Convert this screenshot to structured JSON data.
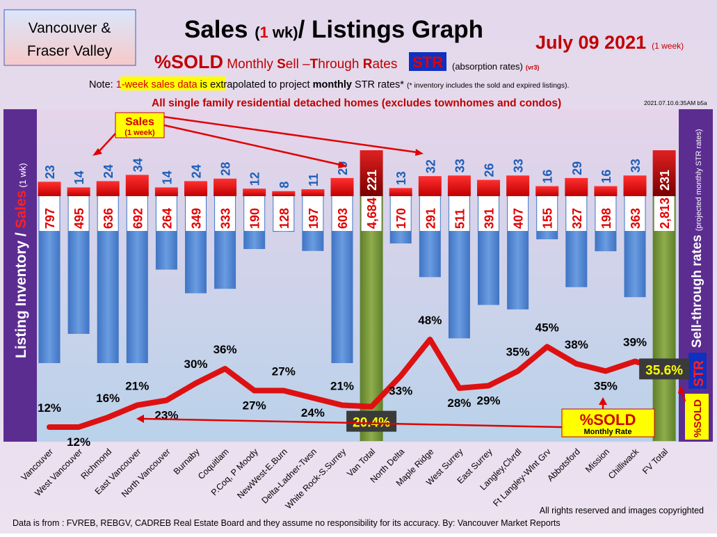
{
  "header": {
    "region_line1": "Vancouver &",
    "region_line2": "Fraser Valley",
    "title_a": "Sales ",
    "title_b": "(",
    "title_c": "1",
    "title_d": " wk)",
    "title_e": "/ Listings Graph",
    "date": "July 09  2021",
    "date_note": "(1 week)",
    "subtitle_a": "%SOLD",
    "subtitle_b": " Monthly ",
    "subtitle_c": "S",
    "subtitle_d": "ell –",
    "subtitle_e": "T",
    "subtitle_f": "hrough ",
    "subtitle_g": "R",
    "subtitle_h": "ates",
    "str_badge": "STR",
    "absorption": "(absorption rates)",
    "version": "(vr3)",
    "note_a": "Note: ",
    "note_b": "1-week sales data",
    "note_c": " is extrapolated to project ",
    "note_d": "monthly",
    "note_e": " STR rates* ",
    "note_f": "(* inventory includes the sold and expired listings).",
    "scope": "All single family residential detached homes (excludes townhomes and condos)",
    "timestamp": "2021.07.10.6:35AM b5a"
  },
  "left_axis": {
    "part1": "Listing Inventory ",
    "part2": "/ ",
    "part3": "Sales",
    "part4": " (1 wk)"
  },
  "right_axis": {
    "part1": "Sell-through rates ",
    "part2": "(projected monthly STR rates)"
  },
  "callouts": {
    "sales_line1": "Sales",
    "sales_line2": "(1 week)",
    "sold_line1": "%SOLD",
    "sold_line2": "Monthly Rate",
    "right_sold": "%SOLD",
    "right_str": "STR"
  },
  "footer": {
    "rights": "All rights reserved and  images copyrighted",
    "source": "Data is from : FVREB, REBGV, CADREB Real Estate Board and they assume no responsibility for its accuracy. By: Vancouver Market Reports"
  },
  "colors": {
    "sales": "#ee1111",
    "listings": "#4f86d4",
    "total": "#7a9a3a",
    "str_line": "#dd1111",
    "sales_label": "#1f5fb5"
  },
  "chart_data": {
    "type": "bar",
    "categories": [
      "Vancouver",
      "West Vancouver",
      "Richmond",
      "East Vancouver",
      "North Vancouver",
      "Burnaby",
      "Coquitlam",
      "P.Coq, P Moody",
      "NewWest-E.Burn",
      "Delta-Ladner-Twsn",
      "White Rock-S.Surrey",
      "Van Total",
      "North Delta",
      "Maple Ridge",
      "West Surrey",
      "East Surrey",
      "Langley,Clvrdl",
      "Ft Langley-Wlnt Grv",
      "Abbotsford",
      "Mission",
      "Chilliwack",
      "FV Total"
    ],
    "totals": [
      "Van Total",
      "FV Total"
    ],
    "series": [
      {
        "name": "Sales",
        "values": [
          23,
          14,
          24,
          34,
          14,
          24,
          28,
          12,
          8,
          11,
          29,
          221,
          13,
          32,
          33,
          26,
          33,
          16,
          29,
          16,
          33,
          231
        ]
      },
      {
        "name": "Listing Inventory",
        "values": [
          797,
          495,
          636,
          692,
          264,
          349,
          333,
          190,
          128,
          197,
          603,
          4684,
          170,
          291,
          511,
          391,
          407,
          155,
          327,
          198,
          363,
          2813
        ]
      },
      {
        "name": "%SOLD",
        "values": [
          12,
          12,
          16,
          21,
          23,
          30,
          36,
          27,
          27,
          24,
          21,
          20.4,
          33,
          48,
          28,
          29,
          35,
          45,
          38,
          35,
          39,
          35.6
        ]
      }
    ],
    "sales_labels": [
      "23",
      "14",
      "24",
      "34",
      "14",
      "24",
      "28",
      "12",
      "8",
      "11",
      "29",
      "221",
      "13",
      "32",
      "33",
      "26",
      "33",
      "16",
      "29",
      "16",
      "33",
      "231"
    ],
    "listing_labels": [
      "797",
      "495",
      "636",
      "692",
      "264",
      "349",
      "333",
      "190",
      "128",
      "197",
      "603",
      "4,684",
      "170",
      "291",
      "511",
      "391",
      "407",
      "155",
      "327",
      "198",
      "363",
      "2,813"
    ],
    "str_labels": [
      "12%",
      "12%",
      "16%",
      "21%",
      "23%",
      "30%",
      "36%",
      "27%",
      "27%",
      "24%",
      "21%",
      "20.4%",
      "33%",
      "48%",
      "28%",
      "29%",
      "35%",
      "45%",
      "38%",
      "35%",
      "39%",
      "35.6%"
    ],
    "xlabel": "",
    "ylabel": "Listing Inventory / Sales (1 wk)",
    "y2label": "Sell-through rates (projected monthly STR rates)"
  }
}
